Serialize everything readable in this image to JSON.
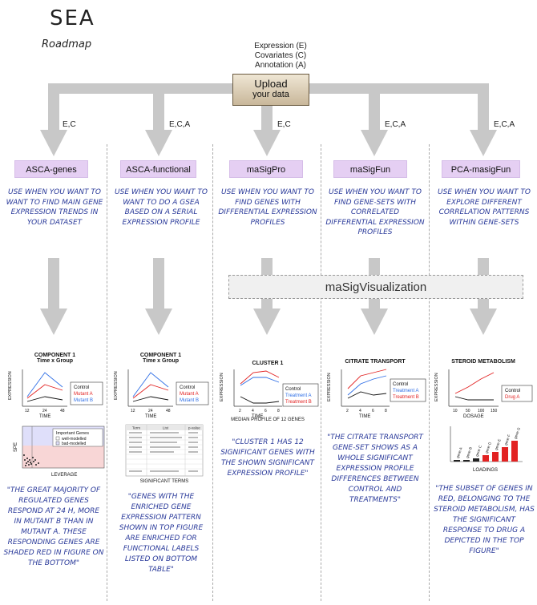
{
  "header": {
    "title": "SEA",
    "subtitle": "Roadmap"
  },
  "inputs": {
    "line1": "Expression (E)",
    "line2": "Covariates (C)",
    "line3": "Annotation (A)"
  },
  "upload": {
    "line1": "Upload",
    "line2": "your data"
  },
  "columns": [
    {
      "edge": "E,C",
      "name": "ASCA-genes",
      "desc": "Use when you want to want to find main gene expression trends in your dataset",
      "quote": "\"The great majority of regulated genes respond at 24 h, more in mutant B than in mutant A. These responding genes are shaded red in figure on the bottom\""
    },
    {
      "edge": "E,C,A",
      "name": "ASCA-functional",
      "desc": "Use when you want to want to do a GSEA based on a serial expression profile",
      "quote": "\"Genes with the enriched gene expression pattern shown in top figure are enriched for functional labels listed on bottom table\""
    },
    {
      "edge": "E,C",
      "name": "maSigPro",
      "desc": "Use when you want to find genes with differential expression profiles",
      "quote": "\"Cluster 1 has 12 significant genes with the shown significant expression profile\""
    },
    {
      "edge": "E,C,A",
      "name": "maSigFun",
      "desc": "Use when you want to find gene-sets with correlated differential expression profiles",
      "quote": "\"The citrate transport gene-set shows as a whole significant expression profile differences between control and treatments\""
    },
    {
      "edge": "E,C,A",
      "name": "PCA-masigFun",
      "desc": "Use when you want to explore different correlation patterns within gene-sets",
      "quote": "\"The subset of genes in red, belonging to the steroid metabolism, has the significant response to drug A depicted in the top figure\""
    }
  ],
  "visualization": {
    "label": "maSigVisualization"
  },
  "charts": {
    "c1": {
      "title": "COMPONENT 1",
      "subtitle": "Time x Group",
      "xlabel": "TIME",
      "ylabel": "EXPRESSION",
      "ticks": [
        "12",
        "24",
        "48"
      ],
      "legend": [
        "Control",
        "Mutant A",
        "Mutant B"
      ]
    },
    "c2": {
      "title": "COMPONENT 1",
      "subtitle": "Time x Group",
      "xlabel": "TIME",
      "ylabel": "EXPRESSION",
      "ticks": [
        "12",
        "24",
        "48"
      ],
      "legend": [
        "Control",
        "Mutant A",
        "Mutant B"
      ]
    },
    "c3": {
      "title": "CLUSTER 1",
      "xlabel": "TIME",
      "ylabel": "EXPRESSION",
      "ticks": [
        "2",
        "4",
        "6",
        "8"
      ],
      "legend": [
        "Control",
        "Treatment A",
        "Treatment B"
      ],
      "caption": "MEDIAN PROFILE OF 12 GENES"
    },
    "c4": {
      "title": "CITRATE TRANSPORT",
      "xlabel": "TIME",
      "ylabel": "EXPRESSION",
      "ticks": [
        "2",
        "4",
        "6",
        "8"
      ],
      "legend": [
        "Control",
        "Treatment A",
        "Treatment B"
      ]
    },
    "c5": {
      "title": "STEROID METABOLISM",
      "xlabel": "DOSAGE",
      "ylabel": "EXPRESSION",
      "ticks": [
        "10",
        "50",
        "100",
        "150"
      ],
      "legend": [
        "Control",
        "Drug A"
      ]
    },
    "scatter": {
      "legend_title": "Important Genes",
      "legend": [
        "well-modelled",
        "bad-modelled"
      ],
      "xlabel": "LEVERAGE",
      "ylabel": "SPE"
    },
    "table": {
      "headers": [
        "Term",
        "List",
        "p-value"
      ],
      "caption": "SIGNIFICANT TERMS"
    },
    "loadings": {
      "xlabel": "LOADINGS",
      "labels": [
        "gene A",
        "gene B",
        "gene C",
        "gene D",
        "gene E",
        "gene F",
        "gene G"
      ]
    }
  },
  "colors": {
    "control": "#111111",
    "red": "#e22222",
    "blue": "#2e6ee6",
    "arrow": "#c8c8c8",
    "ink": "#2a3a9a",
    "pill": "#e5cff3"
  }
}
